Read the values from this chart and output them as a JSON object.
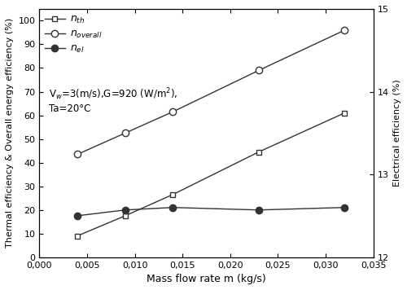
{
  "mass_flow": [
    0.004,
    0.009,
    0.014,
    0.023,
    0.032
  ],
  "n_th": [
    9.0,
    17.5,
    26.5,
    44.5,
    61.0
  ],
  "n_overall": [
    43.5,
    52.5,
    61.5,
    79.0,
    96.0
  ],
  "n_el_right": [
    12.5,
    12.57,
    12.6,
    12.57,
    12.6
  ],
  "ylabel_left": "Thermal efficiency & Overall energy efficiency (%)",
  "ylabel_right": "Electrical efficiency (%)",
  "xlabel": "Mass flow rate m (kg/s)",
  "annotation_line1": "V$_{w}$=3(m/s),G=920 (W/m$^{2}$),",
  "annotation_line2": "Ta=20°C",
  "ylim_left": [
    0,
    105
  ],
  "ylim_right": [
    12,
    15
  ],
  "xlim": [
    0.0,
    0.035
  ],
  "yticks_left": [
    0,
    10,
    20,
    30,
    40,
    50,
    60,
    70,
    80,
    90,
    100
  ],
  "yticks_right": [
    12,
    13,
    14,
    15
  ],
  "xticks": [
    0.0,
    0.005,
    0.01,
    0.015,
    0.02,
    0.025,
    0.03,
    0.035
  ],
  "line_color": "#333333",
  "marker_size": 5,
  "figsize": [
    5.0,
    3.56
  ],
  "dpi": 100
}
